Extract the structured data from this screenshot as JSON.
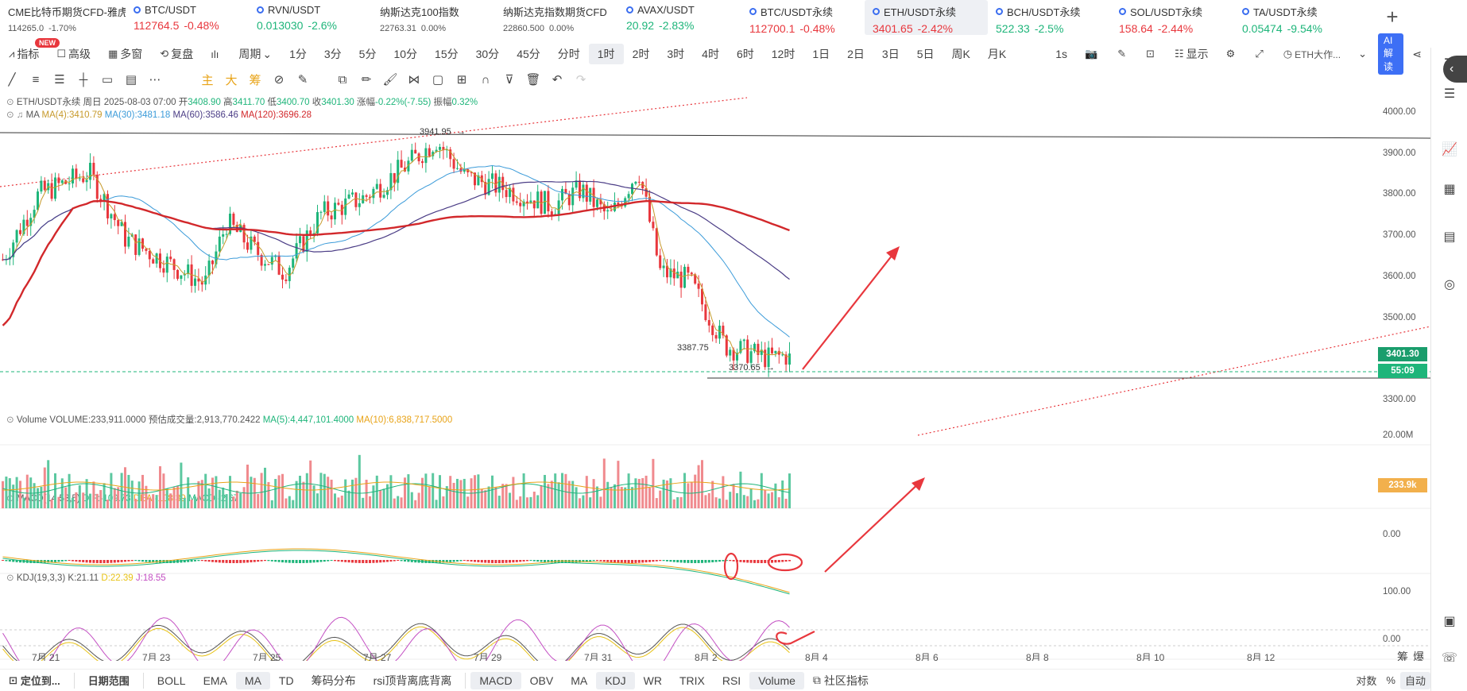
{
  "tickers": [
    {
      "name": "CME比特币期货CFD-雅虎",
      "price": "114265.0",
      "change": "-1.70%",
      "dir": "dn",
      "small": true
    },
    {
      "name": "BTC/USDT",
      "price": "112764.5",
      "change": "-0.48%",
      "dir": "dn",
      "icon": true
    },
    {
      "name": "RVN/USDT",
      "price": "0.013030",
      "change": "-2.6%",
      "dir": "up",
      "icon": true
    },
    {
      "name": "纳斯达克100指数",
      "price": "22763.31",
      "change": "0.00%",
      "dir": "none",
      "small": true
    },
    {
      "name": "纳斯达克指数期货CFD",
      "price": "22860.500",
      "change": "0.00%",
      "dir": "none",
      "small": true
    },
    {
      "name": "AVAX/USDT",
      "price": "20.92",
      "change": "-2.83%",
      "dir": "up",
      "icon": true
    },
    {
      "name": "BTC/USDT永续",
      "price": "112700.1",
      "change": "-0.48%",
      "dir": "dn",
      "icon": true
    },
    {
      "name": "ETH/USDT永续",
      "price": "3401.65",
      "change": "-2.42%",
      "dir": "dn",
      "icon": true,
      "selected": true
    },
    {
      "name": "BCH/USDT永续",
      "price": "522.33",
      "change": "-2.5%",
      "dir": "up",
      "icon": true
    },
    {
      "name": "SOL/USDT永续",
      "price": "158.64",
      "change": "-2.44%",
      "dir": "dn",
      "icon": true
    },
    {
      "name": "TA/USDT永续",
      "price": "0.05474",
      "change": "-9.54%",
      "dir": "up",
      "icon": true
    }
  ],
  "toolbar": {
    "new_badge": "NEW",
    "items": [
      "指标",
      "高级",
      "多窗",
      "复盘",
      "",
      "周期",
      "1分",
      "3分",
      "5分",
      "10分",
      "15分",
      "30分",
      "45分",
      "分时",
      "1时",
      "2时",
      "3时",
      "4时",
      "6时",
      "12时",
      "1日",
      "2日",
      "3日",
      "5日",
      "周K",
      "月K",
      "1s",
      "",
      "",
      "",
      "显示",
      "",
      "",
      "ETH大作...",
      ""
    ],
    "active": "1时",
    "ai_label": "AI解读"
  },
  "draw_tools": {
    "labels": [
      "主",
      "大",
      "筹"
    ]
  },
  "legend": {
    "symbol": "ETH/USDT永续",
    "period": "周日",
    "date": "2025-08-03 07:00",
    "open_label": "开",
    "open": "3408.90",
    "high_label": "高",
    "high": "3411.70",
    "low_label": "低",
    "low": "3400.70",
    "close_label": "收",
    "close": "3401.30",
    "chg_label": "涨幅",
    "chg": "-0.22%(-7.55)",
    "amp_label": "振幅",
    "amp": "0.32%",
    "ma_label": "MA",
    "ma4": "MA(4):3410.79",
    "ma30": "MA(30):3481.18",
    "ma60": "MA(60):3586.46",
    "ma120": "MA(120):3696.28",
    "vol_label": "Volume",
    "vol_value": "VOLUME:233,911.0000",
    "vol_est": "预估成交量:2,913,770.2422",
    "vol_ma5": "MA(5):4,447,101.4000",
    "vol_ma10": "MA(10):6,838,717.5000",
    "macd_label": "MACD(14,53,5)",
    "dif": "DIF:-109.73",
    "dea": "DEA:-108.39",
    "macd": "MACD:-2.67",
    "kdj_label": "KDJ(19,3,3)",
    "k": "K:21.11",
    "d": "D:22.39",
    "j": "J:18.55"
  },
  "price_axis": [
    "4000.00",
    "3900.00",
    "3800.00",
    "3700.00",
    "3600.00",
    "3500.00",
    "3300.00"
  ],
  "vol_axis": "20.00M",
  "macd_axis": "0.00",
  "kdj_axis": [
    "100.00",
    "0.00"
  ],
  "current_price": "3401.30",
  "countdown": "55:09",
  "vol_tag": "233.9k",
  "annotations": {
    "high": "3941.95",
    "level": "3387.75",
    "low": "3370.65"
  },
  "x_labels": [
    "7月 21",
    "7月 23",
    "7月 25",
    "7月 27",
    "7月 29",
    "7月 31",
    "8月 2",
    "8月 4",
    "8月 6",
    "8月 8",
    "8月 10",
    "8月 12"
  ],
  "bottom": {
    "left": [
      "定位到...",
      "日期范围"
    ],
    "items": [
      "BOLL",
      "EMA",
      "MA",
      "TD",
      "筹码分布",
      "rsi顶背离底背离"
    ],
    "items2": [
      "MACD",
      "OBV",
      "MA",
      "KDJ",
      "WR",
      "TRIX",
      "RSI",
      "Volume",
      "社区指标"
    ],
    "active": [
      "MA",
      "MACD",
      "KDJ",
      "Volume"
    ],
    "right": [
      "对数",
      "%",
      "自动"
    ],
    "chip_labels": [
      "筹",
      "爆"
    ]
  },
  "colors": {
    "up": "#1eb57a",
    "down": "#e8373d",
    "accent": "#3d6ff5",
    "ma4": "#c79a2b",
    "ma30": "#3b9bd9",
    "ma60": "#4b3d86",
    "ma120": "#d2282b"
  }
}
